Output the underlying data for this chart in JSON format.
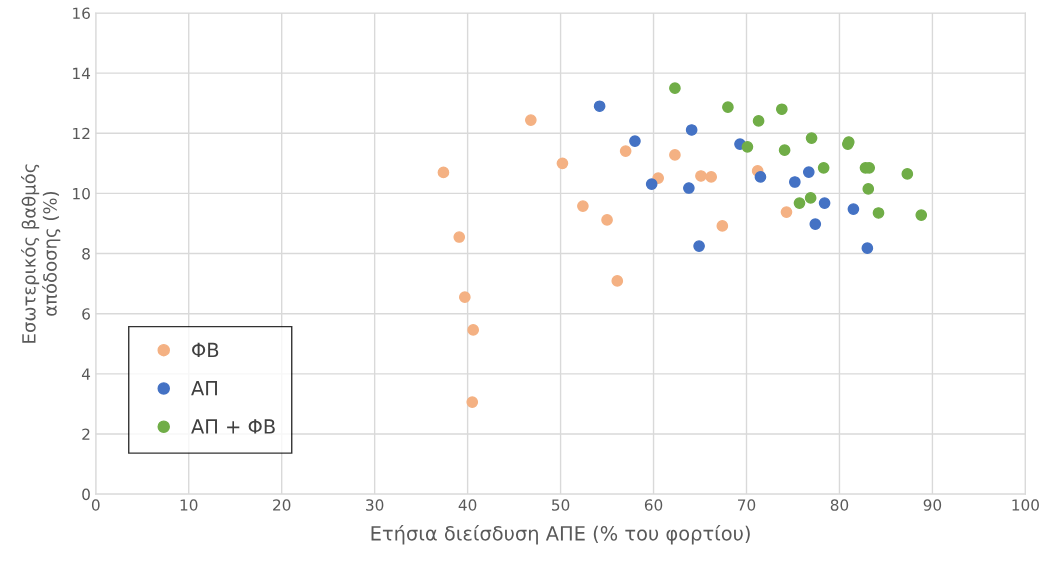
{
  "chart_data": {
    "type": "scatter",
    "xlabel": "Ετήσια διείσδυση ΑΠΕ (% του φορτίου)",
    "ylabel": "Εσωτερικός βαθμός\nαπόδοσης (%)",
    "xlim": [
      0,
      100
    ],
    "xticks": [
      0,
      10,
      20,
      30,
      40,
      50,
      60,
      70,
      80,
      90,
      100
    ],
    "ylim": [
      0,
      16
    ],
    "yticks": [
      0,
      2,
      4,
      6,
      8,
      10,
      12,
      14,
      16
    ],
    "grid": true,
    "legend": "bottom left",
    "marker": "circle",
    "series": [
      {
        "name": "ΦΒ",
        "color": "#f4b183",
        "x": [
          37.4,
          46.8,
          50.2,
          39.1,
          39.7,
          40.6,
          40.5,
          52.4,
          55.0,
          56.1,
          57.0,
          60.5,
          62.3,
          65.1,
          66.2,
          67.4,
          71.2,
          74.3
        ],
        "values": [
          10.7,
          12.44,
          11.0,
          8.55,
          6.55,
          5.46,
          3.06,
          9.58,
          9.12,
          7.09,
          11.41,
          10.51,
          11.28,
          10.58,
          10.55,
          8.92,
          10.75,
          9.38
        ]
      },
      {
        "name": "ΑΠ",
        "color": "#4472c4",
        "x": [
          54.2,
          58.0,
          59.8,
          63.8,
          64.1,
          64.9,
          69.3,
          71.5,
          76.7,
          75.2,
          78.4,
          81.5,
          77.4,
          83.0
        ],
        "values": [
          12.9,
          11.74,
          10.31,
          10.18,
          12.11,
          8.25,
          11.64,
          10.55,
          10.71,
          10.38,
          9.68,
          9.48,
          8.98,
          8.18
        ]
      },
      {
        "name": "ΑΠ + ΦΒ",
        "color": "#70ad47",
        "x": [
          62.3,
          68.0,
          71.3,
          73.8,
          70.1,
          74.1,
          77.0,
          81.0,
          80.9,
          78.3,
          82.8,
          83.2,
          87.3,
          83.1,
          76.9,
          75.7,
          84.2,
          88.8
        ],
        "values": [
          13.5,
          12.87,
          12.41,
          12.8,
          11.55,
          11.44,
          11.84,
          11.71,
          11.64,
          10.85,
          10.85,
          10.85,
          10.65,
          10.15,
          9.85,
          9.68,
          9.35,
          9.28
        ]
      }
    ]
  }
}
